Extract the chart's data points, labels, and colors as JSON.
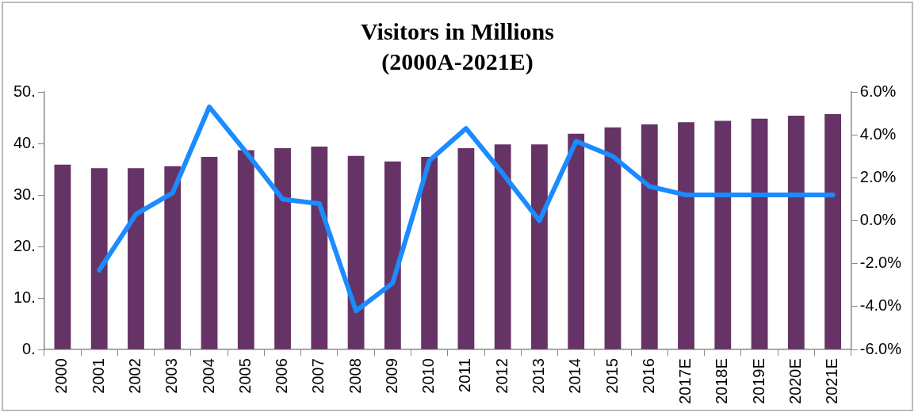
{
  "chart_data": {
    "type": "bar",
    "title": "Visitors in Millions",
    "subtitle": "(2000A-2021E)",
    "categories": [
      "2000",
      "2001",
      "2002",
      "2003",
      "2004",
      "2005",
      "2006",
      "2007",
      "2008",
      "2009",
      "2010",
      "2011",
      "2012",
      "2013",
      "2014",
      "2015",
      "2016",
      "2017E",
      "2018E",
      "2019E",
      "2020E",
      "2021E"
    ],
    "series": [
      {
        "color": "#663366",
        "values": [
          35.9,
          35.2,
          35.2,
          35.6,
          37.4,
          38.7,
          39.1,
          39.4,
          37.6,
          36.5,
          37.4,
          39.1,
          39.8,
          39.8,
          41.9,
          43.1,
          43.7,
          44.1,
          44.4,
          44.8,
          45.4,
          45.7
        ]
      },
      {
        "type": "line",
        "axis": "y2",
        "color": "#1a8cff",
        "values": [
          null,
          -2.3,
          0.3,
          1.3,
          5.3,
          3.2,
          1.0,
          0.8,
          -4.2,
          -2.9,
          2.8,
          4.3,
          2.2,
          0.0,
          3.7,
          3.0,
          1.6,
          1.2,
          1.2,
          1.2,
          1.2,
          1.2
        ]
      }
    ],
    "ylim": [
      0,
      50
    ],
    "yticks": [
      {
        "value": 0,
        "label": "0."
      },
      {
        "value": 10,
        "label": "10."
      },
      {
        "value": 20,
        "label": "20."
      },
      {
        "value": 30,
        "label": "30."
      },
      {
        "value": 40,
        "label": "40."
      },
      {
        "value": 50,
        "label": "50."
      }
    ],
    "y2lim": [
      -6,
      6
    ],
    "y2ticks": [
      {
        "value": -6,
        "label": "-6.0%"
      },
      {
        "value": -4,
        "label": "-4.0%"
      },
      {
        "value": -2,
        "label": "-2.0%"
      },
      {
        "value": 0,
        "label": "0.0%"
      },
      {
        "value": 2,
        "label": "2.0%"
      },
      {
        "value": 4,
        "label": "4.0%"
      },
      {
        "value": 6,
        "label": "6.0%"
      }
    ],
    "grid": false,
    "legend": false,
    "marker": "none",
    "line_style": "solid"
  }
}
